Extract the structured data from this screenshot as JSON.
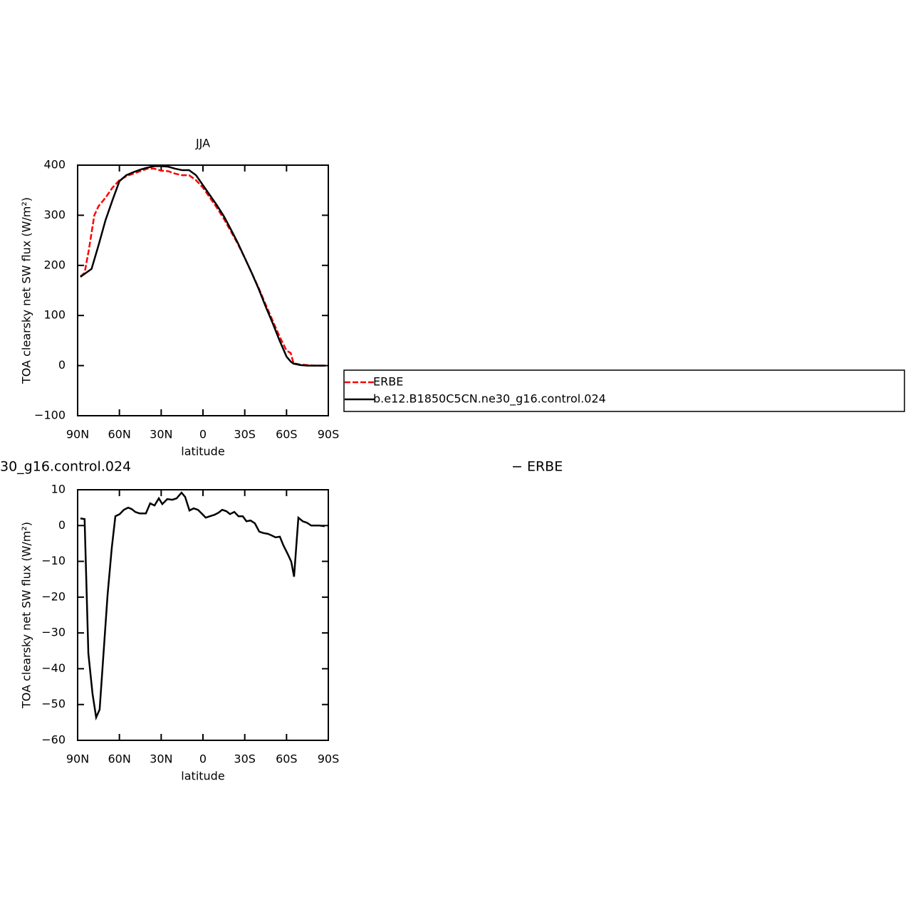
{
  "chart_data": [
    {
      "type": "line",
      "title": "JJA",
      "x_label": "latitude",
      "y_label": "TOA clearsky net SW flux (W/m²)",
      "xlim": [
        90,
        -90
      ],
      "ylim": [
        -100,
        400
      ],
      "xticks": [
        {
          "value": 90,
          "label": "90N"
        },
        {
          "value": 60,
          "label": "60N"
        },
        {
          "value": 30,
          "label": "30N"
        },
        0,
        {
          "value": -30,
          "label": "30S"
        },
        {
          "value": -60,
          "label": "60S"
        },
        {
          "value": -90,
          "label": "90S"
        }
      ],
      "yticks": [
        {
          "value": -100,
          "label": "−100"
        },
        0,
        100,
        200,
        300,
        400
      ],
      "legend": "right",
      "series": [
        {
          "name": "ERBE",
          "color": "#ff0000",
          "dash": true,
          "x": [
            88,
            85,
            82,
            78,
            75,
            70,
            65,
            60,
            55,
            50,
            45,
            40,
            35,
            30,
            25,
            20,
            15,
            10,
            5,
            0,
            -5,
            -10,
            -15,
            -20,
            -25,
            -30,
            -35,
            -40,
            -45,
            -50,
            -55,
            -60,
            -63,
            -65,
            -70,
            -75,
            -80,
            -85,
            -88
          ],
          "values": [
            178,
            185,
            230,
            300,
            318,
            335,
            355,
            370,
            378,
            383,
            388,
            393,
            393,
            389,
            388,
            383,
            380,
            380,
            370,
            355,
            335,
            315,
            293,
            268,
            243,
            215,
            185,
            155,
            122,
            90,
            58,
            30,
            25,
            5,
            2,
            1,
            0,
            0,
            0
          ]
        },
        {
          "name": "b.e12.B1850C5CN.ne30_g16.control.024",
          "color": "#000000",
          "dash": false,
          "x": [
            88,
            85,
            80,
            75,
            70,
            65,
            60,
            55,
            50,
            45,
            40,
            35,
            30,
            25,
            20,
            15,
            10,
            5,
            0,
            -5,
            -10,
            -15,
            -20,
            -25,
            -30,
            -35,
            -40,
            -45,
            -50,
            -55,
            -60,
            -63,
            -65,
            -70,
            -75,
            -80,
            -85,
            -88
          ],
          "values": [
            177,
            183,
            193,
            240,
            290,
            330,
            368,
            380,
            386,
            391,
            395,
            398,
            398,
            397,
            393,
            390,
            390,
            380,
            360,
            340,
            320,
            298,
            272,
            245,
            215,
            185,
            153,
            118,
            85,
            50,
            18,
            8,
            4,
            1,
            0,
            0,
            0,
            0
          ]
        }
      ]
    },
    {
      "type": "line",
      "title_left": "30_g16.control.024",
      "title_right": "− ERBE",
      "x_label": "latitude",
      "y_label": "TOA clearsky net SW flux (W/m²)",
      "xlim": [
        90,
        -90
      ],
      "ylim": [
        -60,
        10
      ],
      "xticks": [
        {
          "value": 90,
          "label": "90N"
        },
        {
          "value": 60,
          "label": "60N"
        },
        {
          "value": 30,
          "label": "30N"
        },
        0,
        {
          "value": -30,
          "label": "30S"
        },
        {
          "value": -60,
          "label": "60S"
        },
        {
          "value": -90,
          "label": "90S"
        }
      ],
      "yticks": [
        {
          "value": -60,
          "label": "−60"
        },
        {
          "value": -50,
          "label": "−50"
        },
        {
          "value": -40,
          "label": "−40"
        },
        {
          "value": -30,
          "label": "−30"
        },
        {
          "value": -20,
          "label": "−20"
        },
        {
          "value": -10,
          "label": "−10"
        },
        0,
        10
      ],
      "series": [
        {
          "color": "#000000",
          "dash": false,
          "x": [
            88,
            85,
            82.3,
            79.3,
            76.7,
            74.2,
            68.5,
            65.5,
            62.9,
            59.8,
            56.8,
            53.7,
            51.1,
            48.6,
            45.5,
            41,
            37.9,
            34.8,
            31.7,
            29.2,
            25.6,
            22,
            18.9,
            15.4,
            12.8,
            9.7,
            6.7,
            3.6,
            0.5,
            -2,
            -5,
            -8.2,
            -11.2,
            -13.8,
            -16.8,
            -19.4,
            -22.5,
            -25.5,
            -28.6,
            -31.2,
            -34.2,
            -37.3,
            -40.4,
            -43.4,
            -46.5,
            -49,
            -52.1,
            -55.2,
            -57.7,
            -60.8,
            -63.4,
            -65.4,
            -68.5,
            -71.6,
            -74.6,
            -77.7,
            -80.8,
            -83.8,
            -87.4
          ],
          "values": [
            2,
            1.8,
            -35.7,
            -47,
            -53.6,
            -51.4,
            -19.4,
            -6.3,
            2.6,
            3.2,
            4.4,
            5,
            4.6,
            3.8,
            3.4,
            3.4,
            6.2,
            5.6,
            7.6,
            6,
            7.4,
            7.2,
            7.6,
            9.2,
            8,
            4.2,
            4.8,
            4.4,
            3.2,
            2.2,
            2.6,
            3,
            3.6,
            4.4,
            4,
            3.2,
            3.8,
            2.6,
            2.6,
            1.2,
            1.4,
            0.6,
            -1.7,
            -2.1,
            -2.3,
            -2.7,
            -3.3,
            -3.1,
            -5.5,
            -7.9,
            -10.1,
            -14.3,
            2.2,
            1.2,
            0.8,
            0,
            0,
            0,
            -0.2
          ]
        }
      ]
    }
  ]
}
